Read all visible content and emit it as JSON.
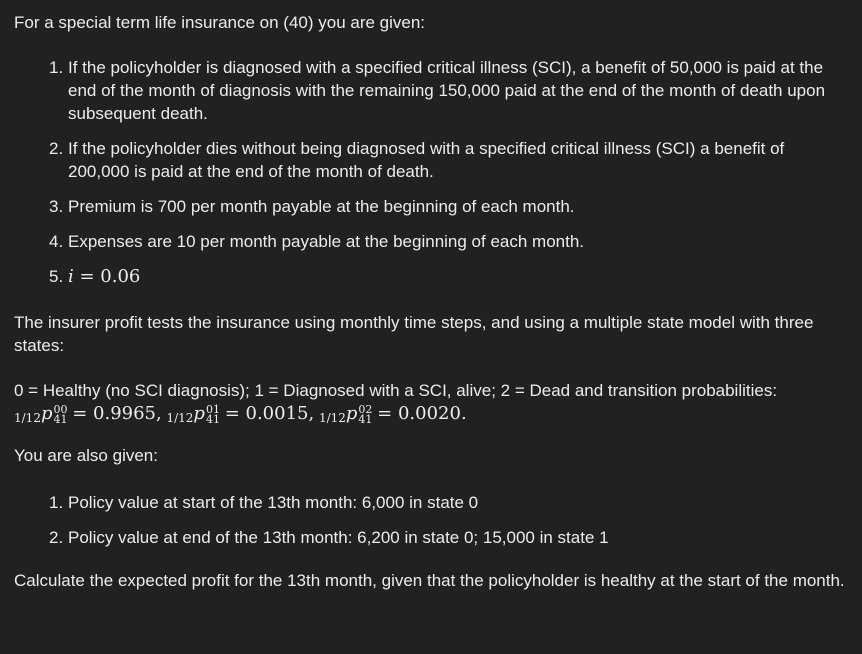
{
  "intro": "For a special term life insurance on (40) you are given:",
  "given_items": [
    {
      "num": "1.",
      "text": "If the policyholder is diagnosed with a specified critical illness (SCI), a benefit of 50,000 is paid at the end of the month of diagnosis with the remaining 150,000 paid at the end of the month of death upon subsequent death."
    },
    {
      "num": "2.",
      "text": "If the policyholder dies without being diagnosed with a specified critical illness (SCI) a benefit of 200,000 is paid at the end of the month of death."
    },
    {
      "num": "3.",
      "text": "Premium is 700 per month payable at the beginning of each month."
    },
    {
      "num": "4.",
      "text": "Expenses are 10 per month payable at the beginning of each month."
    },
    {
      "num": "5.",
      "math_var": "i",
      "math_eq": " = 0.06"
    }
  ],
  "profit_test_text": "The insurer profit tests the insurance using monthly time steps, and using a multiple state model with three states:",
  "states_text": "0 = Healthy (no SCI diagnosis); 1 = Diagnosed with a SCI, alive; 2 = Dead and transition probabilities:",
  "probabilities": [
    {
      "pre": "1/12",
      "sym": "p",
      "sup": "00",
      "sub": "41",
      "value": "= 0.9965,"
    },
    {
      "pre": "1/12",
      "sym": "p",
      "sup": "01",
      "sub": "41",
      "value": "= 0.0015,"
    },
    {
      "pre": "1/12",
      "sym": "p",
      "sup": "02",
      "sub": "41",
      "value": "= 0.0020."
    }
  ],
  "also_given": "You are also given:",
  "value_items": [
    {
      "num": "1.",
      "text": "Policy value at start of the 13th month: 6,000 in state 0"
    },
    {
      "num": "2.",
      "text": "Policy value at end of the 13th month: 6,200 in state 0; 15,000 in state 1"
    }
  ],
  "question": "Calculate the expected profit for the 13th month, given that the policyholder is healthy at the start of the month."
}
